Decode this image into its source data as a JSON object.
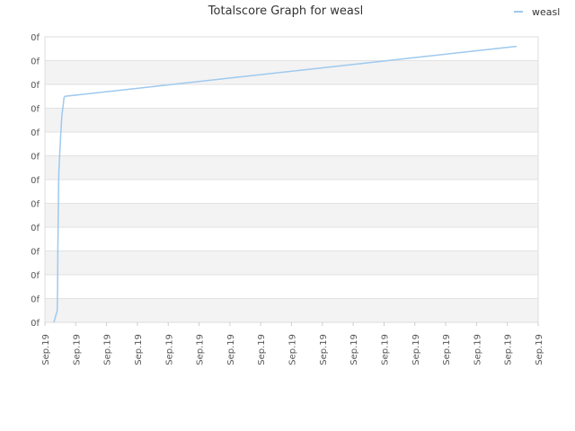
{
  "chart_data": {
    "type": "line",
    "title": "Totalscore Graph for weasl",
    "xlabel": "",
    "ylabel": "",
    "legend": {
      "placement": "top-right",
      "entries": [
        "weasl"
      ]
    },
    "grid": true,
    "y_tick_labels": [
      "0f",
      "0f",
      "0f",
      "0f",
      "0f",
      "0f",
      "0f",
      "0f",
      "0f",
      "0f",
      "0f",
      "0f",
      "0f"
    ],
    "x_tick_labels": [
      "Sep.19",
      "Sep.19",
      "Sep.19",
      "Sep.19",
      "Sep.19",
      "Sep.19",
      "Sep.19",
      "Sep.19",
      "Sep.19",
      "Sep.19",
      "Sep.19",
      "Sep.19",
      "Sep.19",
      "Sep.19",
      "Sep.19",
      "Sep.19",
      "Sep.19"
    ],
    "xlim": [
      0,
      16
    ],
    "ylim": [
      0,
      12
    ],
    "series": [
      {
        "name": "weasl",
        "color": "#9ec9ee",
        "x": [
          0.29,
          0.4,
          0.41,
          0.42,
          0.43,
          0.44,
          0.45,
          0.47,
          0.5,
          0.53,
          0.55,
          0.58,
          0.6,
          0.62,
          0.65,
          15.3
        ],
        "y": [
          0.0,
          0.5,
          1.5,
          3.0,
          4.5,
          5.3,
          6.2,
          6.8,
          7.6,
          8.3,
          8.7,
          9.0,
          9.2,
          9.45,
          9.5,
          11.6
        ]
      }
    ]
  }
}
